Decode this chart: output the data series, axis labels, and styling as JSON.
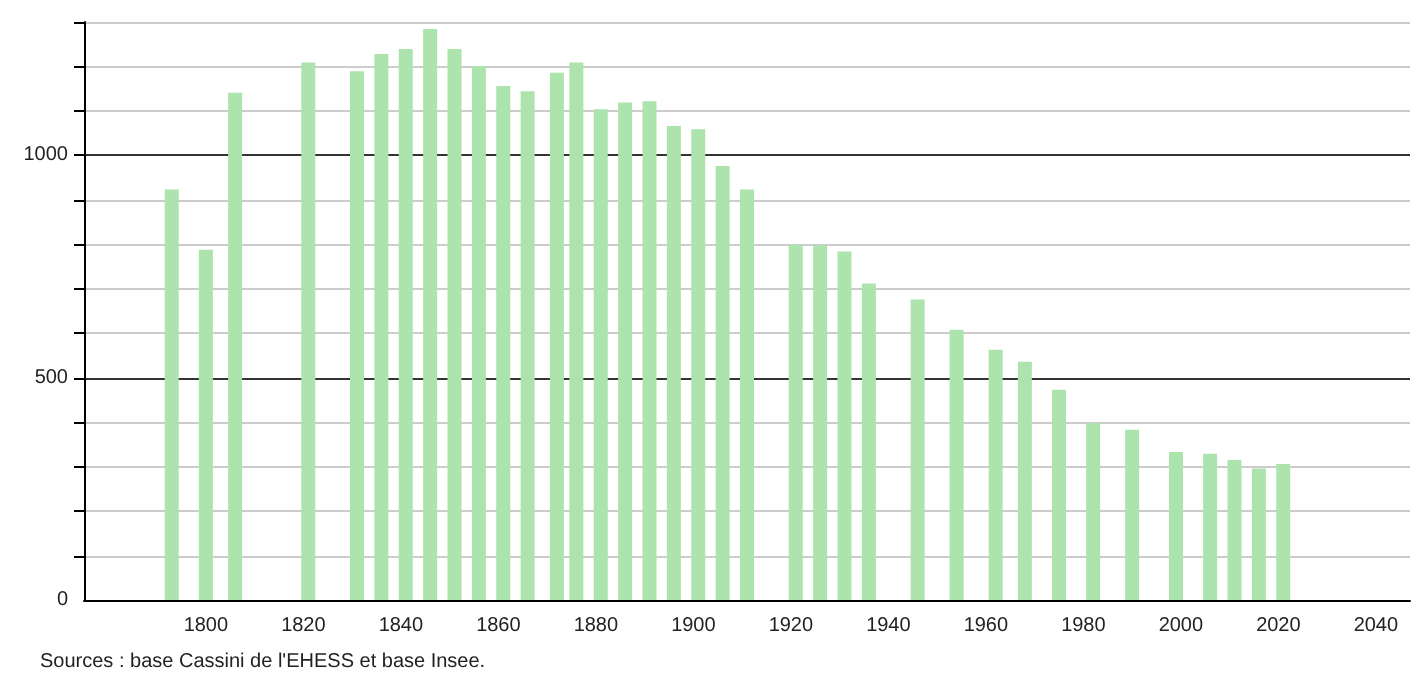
{
  "chart_data": {
    "type": "bar",
    "color": "#ade3ad",
    "x": [
      1793,
      1800,
      1806,
      1821,
      1831,
      1836,
      1841,
      1846,
      1851,
      1856,
      1861,
      1866,
      1872,
      1876,
      1881,
      1886,
      1891,
      1896,
      1901,
      1906,
      1911,
      1921,
      1926,
      1931,
      1936,
      1946,
      1954,
      1962,
      1968,
      1975,
      1982,
      1990,
      1999,
      2006,
      2011,
      2016,
      2021
    ],
    "values": [
      923,
      788,
      1141,
      1209,
      1189,
      1228,
      1239,
      1284,
      1239,
      1201,
      1156,
      1144,
      1186,
      1209,
      1104,
      1119,
      1122,
      1066,
      1059,
      976,
      923,
      799,
      798,
      784,
      712,
      676,
      608,
      563,
      536,
      473,
      398,
      383,
      333,
      329,
      315,
      296,
      306
    ],
    "xlim": [
      1775,
      2047
    ],
    "xticks": [
      1800,
      1820,
      1840,
      1860,
      1880,
      1900,
      1920,
      1940,
      1960,
      1980,
      2000,
      2020,
      2040
    ],
    "ylim": [
      0,
      1300
    ],
    "yticks": [
      0,
      {
        "value": 100,
        "label": null
      },
      {
        "value": 200,
        "label": null
      },
      {
        "value": 300,
        "label": null
      },
      {
        "value": 400,
        "label": null
      },
      500,
      {
        "value": 600,
        "label": null
      },
      {
        "value": 700,
        "label": null
      },
      {
        "value": 800,
        "label": null
      },
      {
        "value": 900,
        "label": null
      },
      1000,
      {
        "value": 1100,
        "label": null
      },
      {
        "value": 1200,
        "label": null
      },
      {
        "value": 1300,
        "label": null
      }
    ],
    "grid": "y",
    "annotations": [
      "Sources : base Cassini de l'EHESS et base Insee."
    ]
  }
}
